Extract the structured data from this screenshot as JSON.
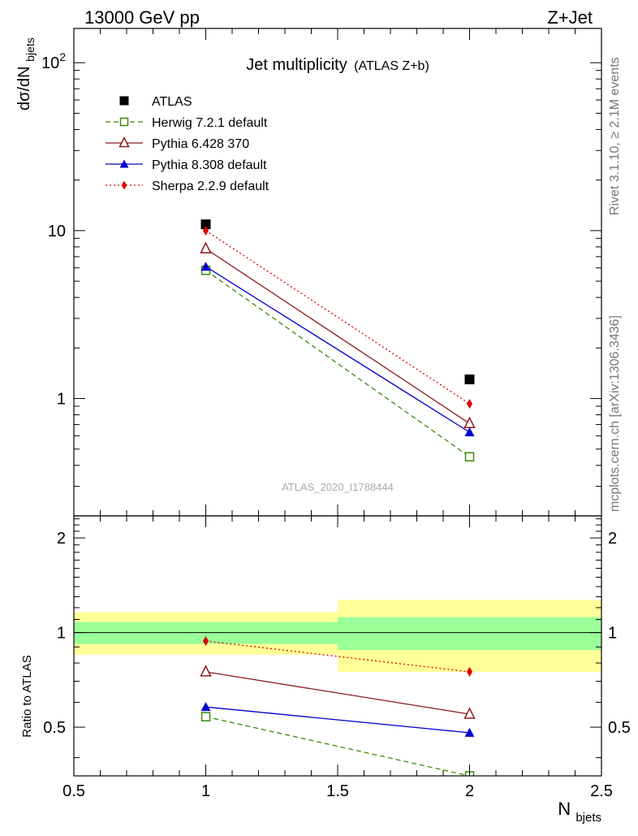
{
  "header": {
    "left": "13000 GeV pp",
    "right": "Z+Jet"
  },
  "side_labels": {
    "rivet": "Rivet 3.1.10, ≥ 2.1M events",
    "mcplots": "mcplots.cern.ch [arXiv:1306.3436]"
  },
  "chart_data": [
    {
      "type": "scatter",
      "title": "Jet multiplicity",
      "subtitle": "(ATLAS Z+b)",
      "watermark": "ATLAS_2020_I1788444",
      "ylabel": "dσ/dN",
      "ylabel_sub": "bjets",
      "yscale": "log",
      "xlim": [
        0.5,
        2.5
      ],
      "ylim": [
        0.2,
        160
      ],
      "y_ticks": [
        {
          "value": 1,
          "label": "1"
        },
        {
          "value": 10,
          "label": "10"
        },
        {
          "value": 100,
          "label": "10",
          "sup": "2"
        }
      ],
      "series": [
        {
          "name": "ATLAS",
          "x": [
            1,
            2
          ],
          "y": [
            10.9,
            1.3
          ],
          "color": "#000000",
          "marker": "filled-square",
          "line": "none"
        },
        {
          "name": "Herwig 7.2.1 default",
          "x": [
            1,
            2
          ],
          "y": [
            5.8,
            0.45
          ],
          "color": "#3a8a0a",
          "marker": "open-square",
          "line": "dashed"
        },
        {
          "name": "Pythia 6.428 370",
          "x": [
            1,
            2
          ],
          "y": [
            7.8,
            0.71
          ],
          "color": "#8b1a1a",
          "marker": "open-triangle",
          "line": "solid"
        },
        {
          "name": "Pythia 8.308 default",
          "x": [
            1,
            2
          ],
          "y": [
            6.1,
            0.63
          ],
          "color": "#0000cc",
          "marker": "filled-triangle",
          "line": "solid"
        },
        {
          "name": "Sherpa 2.2.9 default",
          "x": [
            1,
            2
          ],
          "y": [
            10.0,
            0.93
          ],
          "color": "#e00000",
          "marker": "filled-diamond",
          "line": "dotted"
        }
      ],
      "legend": "top-left"
    },
    {
      "type": "line",
      "ylabel": "Ratio to ATLAS",
      "xlabel": "N",
      "xlabel_sub": "bjets",
      "yscale": "log",
      "xlim": [
        0.5,
        2.5
      ],
      "ylim": [
        0.35,
        2.35
      ],
      "x_ticks": [
        {
          "value": 0.5,
          "label": "0.5"
        },
        {
          "value": 1,
          "label": "1"
        },
        {
          "value": 1.5,
          "label": "1.5"
        },
        {
          "value": 2,
          "label": "2"
        },
        {
          "value": 2.5,
          "label": "2.5"
        }
      ],
      "y_ticks": [
        {
          "value": 0.5,
          "label": "0.5"
        },
        {
          "value": 1,
          "label": "1"
        },
        {
          "value": 2,
          "label": "2"
        }
      ],
      "bands": [
        {
          "x": [
            0.5,
            1.5
          ],
          "inner": [
            0.92,
            1.08
          ],
          "outer": [
            0.85,
            1.16
          ]
        },
        {
          "x": [
            1.5,
            2.5
          ],
          "inner": [
            0.88,
            1.12
          ],
          "outer": [
            0.75,
            1.27
          ]
        }
      ],
      "band_colors": {
        "inner": "#99ff99",
        "outer": "#ffff99"
      },
      "series": [
        {
          "name": "Herwig 7.2.1 default",
          "x": [
            1,
            2
          ],
          "y": [
            0.54,
            0.35
          ],
          "color": "#3a8a0a",
          "marker": "open-square",
          "line": "dashed"
        },
        {
          "name": "Pythia 6.428 370",
          "x": [
            1,
            2
          ],
          "y": [
            0.75,
            0.55
          ],
          "color": "#8b1a1a",
          "marker": "open-triangle",
          "line": "solid"
        },
        {
          "name": "Pythia 8.308 default",
          "x": [
            1,
            2
          ],
          "y": [
            0.58,
            0.48
          ],
          "color": "#0000cc",
          "marker": "filled-triangle",
          "line": "solid"
        },
        {
          "name": "Sherpa 2.2.9 default",
          "x": [
            1,
            2
          ],
          "y": [
            0.94,
            0.75
          ],
          "color": "#e00000",
          "marker": "filled-diamond",
          "line": "dotted"
        }
      ]
    }
  ]
}
